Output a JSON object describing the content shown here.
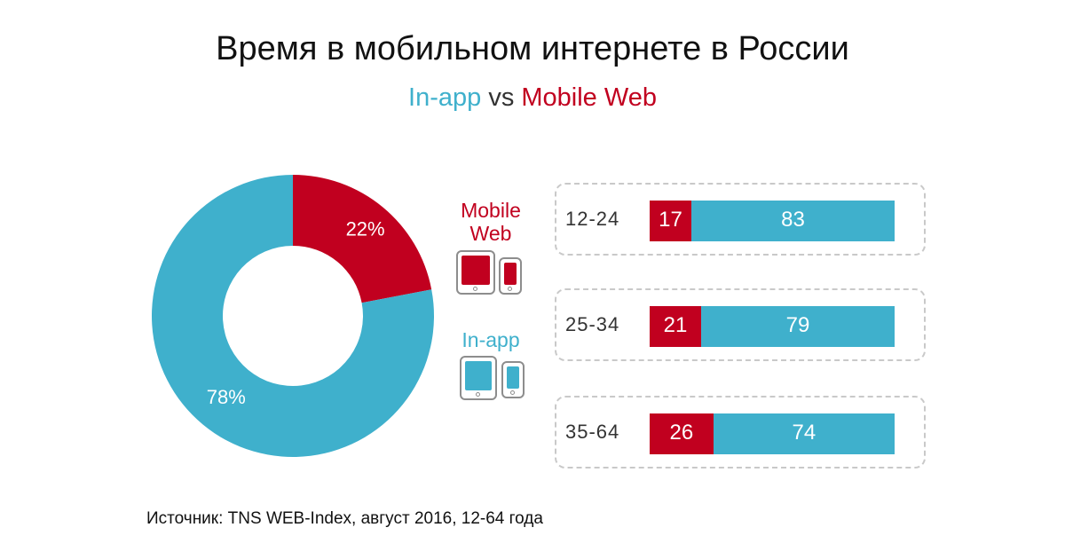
{
  "title": "Время в мобильном интернете в России",
  "subtitle": {
    "inapp": "In-app",
    "vs": "vs",
    "mweb": "Mobile Web"
  },
  "colors": {
    "mobile_web": "#c1001f",
    "in_app": "#3fb0cc"
  },
  "legend": {
    "mobile_web": "Mobile Web",
    "in_app": "In-app"
  },
  "chart_data": [
    {
      "type": "pie",
      "style": "donut",
      "slices": [
        {
          "name": "Mobile Web",
          "value": 22,
          "label": "22%",
          "color": "#c1001f"
        },
        {
          "name": "In-app",
          "value": 78,
          "label": "78%",
          "color": "#3fb0cc"
        }
      ]
    },
    {
      "type": "bar",
      "orientation": "horizontal",
      "stacked": true,
      "categories": [
        "12-24",
        "25-34",
        "35-64"
      ],
      "series": [
        {
          "name": "Mobile Web",
          "values": [
            17,
            21,
            26
          ],
          "color": "#c1001f"
        },
        {
          "name": "In-app",
          "values": [
            83,
            79,
            74
          ],
          "color": "#3fb0cc"
        }
      ]
    }
  ],
  "source": "Источник: TNS WEB-Index, август 2016, 12-64 года"
}
